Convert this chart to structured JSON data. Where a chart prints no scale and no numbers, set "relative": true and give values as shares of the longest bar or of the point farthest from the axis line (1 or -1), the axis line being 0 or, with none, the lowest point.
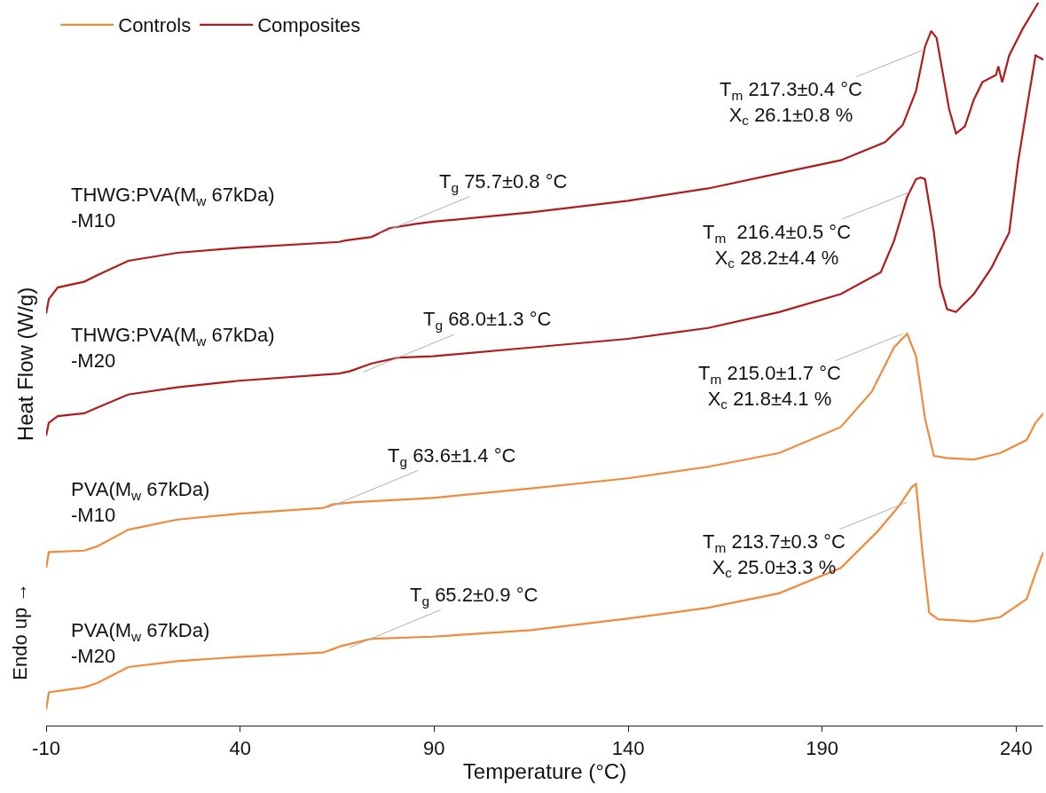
{
  "chart_data": {
    "type": "line",
    "relative": true,
    "xlabel": "Temperature (°C)",
    "ylabel": "Heat Flow (W/g)",
    "xlim": [
      -10,
      247
    ],
    "xticks": [
      -10,
      40,
      90,
      140,
      190,
      240
    ],
    "grid": false,
    "legend": "top left",
    "line_style": "solid",
    "series": [
      {
        "name": "Controls",
        "color": "#f08a3c",
        "x": [
          -10,
          -9.3,
          -0.2,
          3.2,
          11.2,
          23.8,
          39.7,
          61.4,
          66.0,
          73.9,
          89.7,
          115.0,
          139.9,
          160.6,
          178.9,
          194.8,
          204.0,
          209.7,
          213.1,
          214.2,
          215.8,
          217.6,
          219.9,
          229.1,
          235.9,
          242.7,
          245.0,
          247
        ],
        "values": [
          0.022,
          0.046,
          0.053,
          0.059,
          0.081,
          0.089,
          0.095,
          0.101,
          0.11,
          0.12,
          0.123,
          0.132,
          0.148,
          0.163,
          0.183,
          0.218,
          0.267,
          0.303,
          0.33,
          0.334,
          0.242,
          0.156,
          0.147,
          0.144,
          0.15,
          0.175,
          0.211,
          0.24
        ]
      },
      {
        "color": "#f08a3c",
        "x": [
          -10,
          -9.3,
          -0.2,
          3.2,
          11.2,
          23.8,
          39.7,
          61.4,
          63.7,
          69.4,
          89.7,
          115.0,
          139.9,
          160.6,
          178.9,
          194.8,
          202.8,
          208.5,
          211.9,
          214.2,
          216.5,
          218.8,
          222.2,
          229.1,
          235.9,
          242.7,
          245.0,
          247
        ],
        "values": [
          0.218,
          0.24,
          0.242,
          0.248,
          0.271,
          0.285,
          0.293,
          0.301,
          0.306,
          0.309,
          0.315,
          0.328,
          0.342,
          0.358,
          0.377,
          0.413,
          0.462,
          0.523,
          0.542,
          0.511,
          0.425,
          0.373,
          0.37,
          0.368,
          0.377,
          0.395,
          0.419,
          0.432
        ]
      },
      {
        "name": "Composites",
        "color": "#b01c1c",
        "x": [
          -10,
          -9.3,
          -7.0,
          -0.2,
          3.2,
          11.2,
          23.8,
          39.7,
          65.5,
          68.2,
          73.9,
          80.8,
          89.7,
          115.0,
          139.9,
          160.6,
          178.9,
          194.8,
          205.1,
          208.5,
          211.9,
          214.2,
          215.4,
          216.5,
          218.8,
          220.4,
          222.2,
          224.5,
          229.1,
          233.6,
          238.2,
          240.5,
          242.7,
          245.0,
          247
        ],
        "values": [
          0.401,
          0.419,
          0.428,
          0.432,
          0.44,
          0.458,
          0.468,
          0.477,
          0.487,
          0.49,
          0.501,
          0.509,
          0.511,
          0.523,
          0.535,
          0.55,
          0.572,
          0.597,
          0.627,
          0.67,
          0.731,
          0.756,
          0.758,
          0.756,
          0.682,
          0.609,
          0.576,
          0.572,
          0.597,
          0.633,
          0.682,
          0.78,
          0.853,
          0.927,
          0.921
        ]
      },
      {
        "color": "#b01c1c",
        "x": [
          -10,
          -9.3,
          -7.0,
          -0.2,
          3.2,
          11.2,
          23.8,
          39.7,
          65.5,
          67.1,
          73.9,
          78.5,
          85.3,
          89.7,
          115.0,
          139.9,
          160.6,
          178.9,
          194.8,
          206.2,
          210.8,
          214.2,
          216.5,
          218.1,
          219.5,
          221.1,
          222.7,
          224.5,
          226.8,
          229.1,
          231.3,
          234.8,
          235.4,
          236.4,
          238.2,
          241.6,
          245.7
        ],
        "values": [
          0.57,
          0.59,
          0.606,
          0.614,
          0.623,
          0.643,
          0.654,
          0.661,
          0.669,
          0.671,
          0.676,
          0.688,
          0.694,
          0.697,
          0.71,
          0.726,
          0.743,
          0.764,
          0.782,
          0.807,
          0.831,
          0.878,
          0.939,
          0.961,
          0.951,
          0.902,
          0.853,
          0.819,
          0.829,
          0.866,
          0.89,
          0.9,
          0.912,
          0.89,
          0.927,
          0.963,
          1
        ]
      }
    ],
    "annotations": [
      "THWG:PVA(M$_{w}$ 67kDa)\n-M10",
      "THWG:PVA(M$_{w}$ 67kDa)\n-M20",
      "PVA(M$_{w}$ 67kDa)\n-M10",
      "PVA(M$_{w}$ 67kDa)\n-M20",
      "Endo up →",
      {
        "text": "T$_{g}$ 75.7±0.8 °C",
        "x": 75.8,
        "y": 0.68
      },
      {
        "text": "T$_{m}$ 217.3±0.4 °C\nX$_{c}$ 26.1±0.8 %",
        "x": 216.3,
        "y": 0.935
      },
      {
        "text": "T$_{g}$ 68.0±1.3 °C",
        "x": 71.7,
        "y": 0.489
      },
      {
        "text": "T$_{m}$  216.4±0.5 °C\nX$_{c}$ 28.2±4.4 %",
        "x": 212.5,
        "y": 0.738
      },
      {
        "text": "T$_{g}$ 63.6±1.4 °C",
        "x": 62.5,
        "y": 0.301
      },
      {
        "text": "T$_{m}$ 215.0±1.7 °C\nX$_{c}$ 21.8±4.1 %",
        "x": 210.8,
        "y": 0.542
      },
      {
        "text": "T$_{g}$ 65.2±0.9 °C",
        "x": 68.2,
        "y": 0.108
      },
      {
        "text": "T$_{m}$ 213.7±0.3 °C\nX$_{c}$ 25.0±3.3 %",
        "x": 211.9,
        "y": 0.309
      }
    ]
  }
}
